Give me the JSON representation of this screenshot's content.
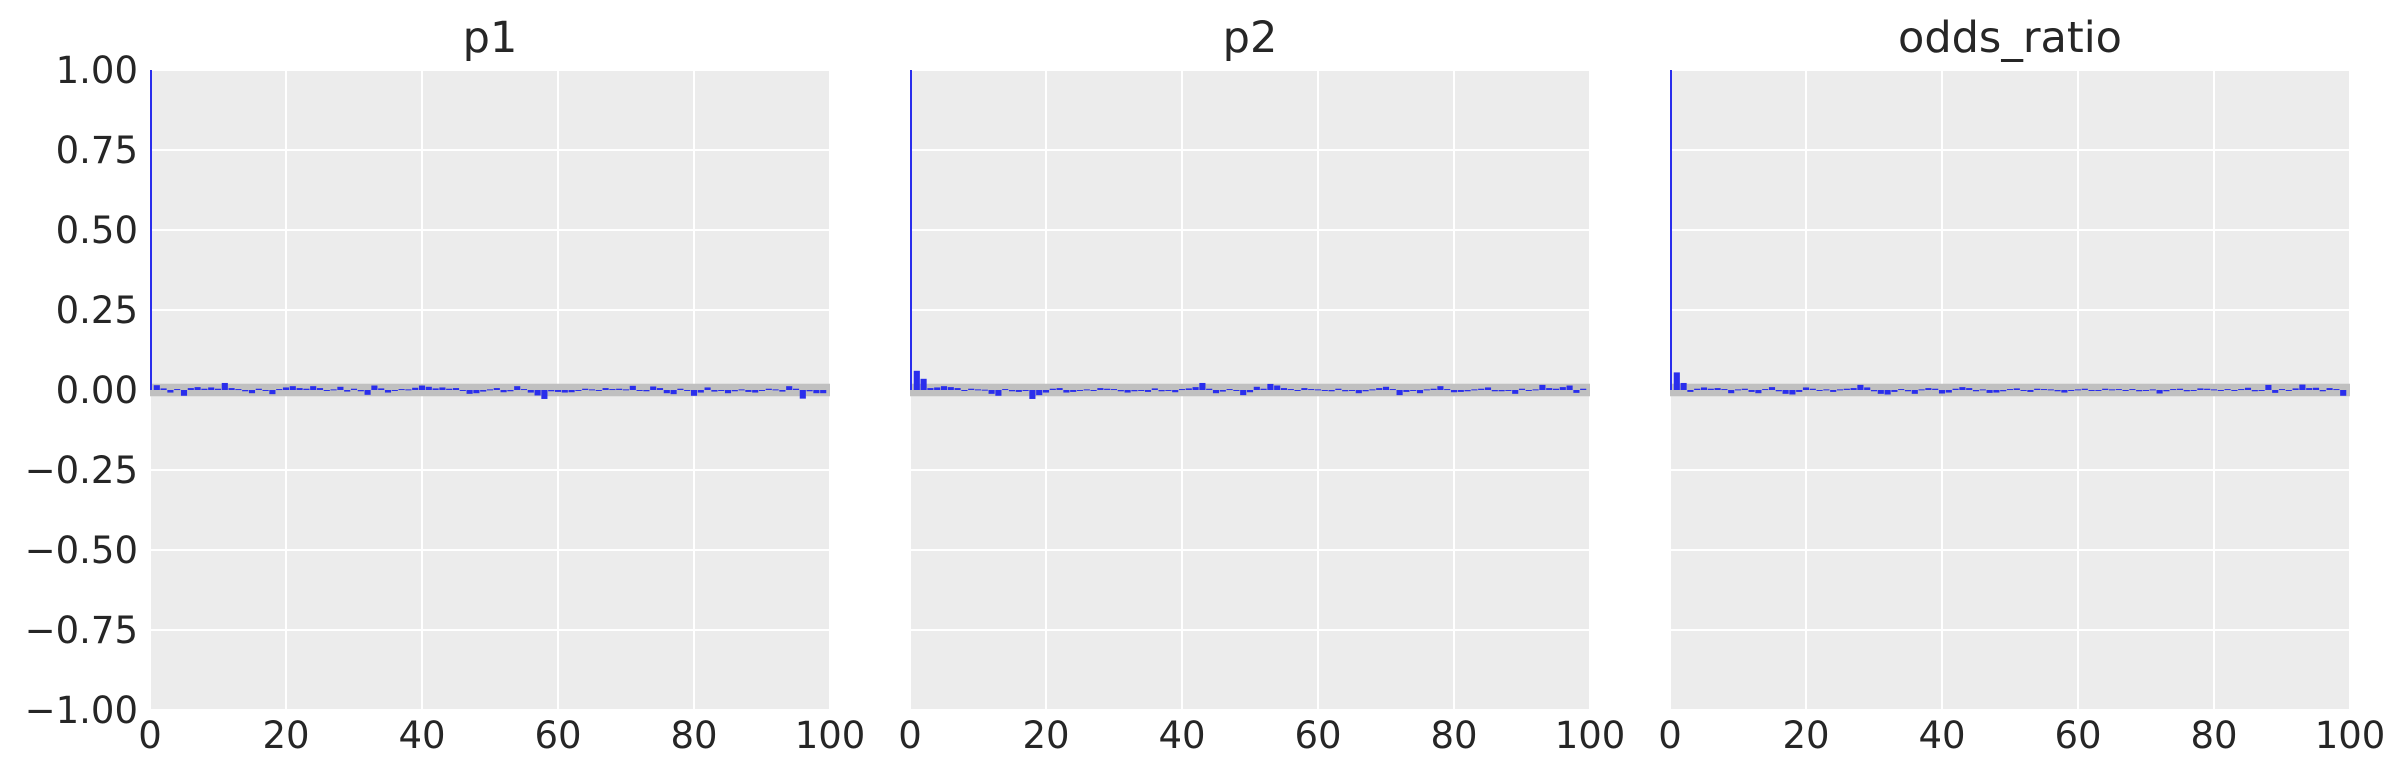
{
  "chart_data": [
    {
      "type": "bar",
      "title": "p1",
      "xlim": [
        0,
        100
      ],
      "ylim": [
        -1.0,
        1.0
      ],
      "xticks": [
        "0",
        "20",
        "40",
        "60",
        "80",
        "100"
      ],
      "yticks": [
        "1.00",
        "0.75",
        "0.50",
        "0.25",
        "0.00",
        "−0.25",
        "−0.50",
        "−0.75",
        "−1.00"
      ],
      "show_yticks": true,
      "grid": true,
      "confidence_band": [
        -0.0196,
        0.0196
      ],
      "bar_color": "#2a2eec",
      "band_color": "#c0c0c0",
      "facecolor": "#ececec",
      "lags": [
        0,
        1,
        2,
        3,
        4,
        5,
        6,
        7,
        8,
        9,
        10,
        11,
        12,
        13,
        14,
        15,
        16,
        17,
        18,
        19,
        20,
        21,
        22,
        23,
        24,
        25,
        26,
        27,
        28,
        29,
        30,
        31,
        32,
        33,
        34,
        35,
        36,
        37,
        38,
        39,
        40,
        41,
        42,
        43,
        44,
        45,
        46,
        47,
        48,
        49,
        50,
        51,
        52,
        53,
        54,
        55,
        56,
        57,
        58,
        59,
        60,
        61,
        62,
        63,
        64,
        65,
        66,
        67,
        68,
        69,
        70,
        71,
        72,
        73,
        74,
        75,
        76,
        77,
        78,
        79,
        80,
        81,
        82,
        83,
        84,
        85,
        86,
        87,
        88,
        89,
        90,
        91,
        92,
        93,
        94,
        95,
        96,
        97,
        98,
        99
      ],
      "values": [
        1.0,
        0.015,
        0.005,
        -0.008,
        0.003,
        -0.018,
        0.006,
        0.009,
        0.004,
        0.008,
        0.004,
        0.022,
        0.006,
        0.003,
        -0.004,
        -0.01,
        0.004,
        -0.003,
        -0.013,
        0.003,
        0.008,
        0.012,
        0.006,
        0.004,
        0.012,
        0.006,
        -0.003,
        0.002,
        0.01,
        -0.005,
        0.004,
        -0.004,
        -0.015,
        0.014,
        0.005,
        -0.008,
        -0.003,
        0.003,
        0.002,
        0.007,
        0.014,
        0.01,
        0.005,
        0.008,
        0.004,
        0.006,
        -0.002,
        -0.012,
        -0.01,
        -0.005,
        0.002,
        0.006,
        -0.007,
        -0.004,
        0.012,
        0.003,
        -0.008,
        -0.017,
        -0.028,
        -0.004,
        -0.006,
        -0.008,
        -0.007,
        -0.003,
        0.004,
        0.002,
        -0.003,
        0.006,
        0.003,
        0.004,
        0.002,
        0.013,
        -0.003,
        -0.004,
        0.011,
        0.006,
        -0.01,
        -0.013,
        0.004,
        -0.003,
        -0.018,
        -0.008,
        0.008,
        -0.005,
        -0.003,
        -0.01,
        -0.004,
        0.002,
        -0.006,
        -0.008,
        -0.003,
        0.004,
        0.002,
        -0.005,
        0.012,
        0.004,
        -0.027,
        -0.004,
        -0.01,
        -0.01
      ]
    },
    {
      "type": "bar",
      "title": "p2",
      "xlim": [
        0,
        100
      ],
      "ylim": [
        -1.0,
        1.0
      ],
      "xticks": [
        "0",
        "20",
        "40",
        "60",
        "80",
        "100"
      ],
      "show_yticks": false,
      "grid": true,
      "confidence_band": [
        -0.0196,
        0.0196
      ],
      "bar_color": "#2a2eec",
      "band_color": "#c0c0c0",
      "facecolor": "#ececec",
      "lags": [
        0,
        1,
        2,
        3,
        4,
        5,
        6,
        7,
        8,
        9,
        10,
        11,
        12,
        13,
        14,
        15,
        16,
        17,
        18,
        19,
        20,
        21,
        22,
        23,
        24,
        25,
        26,
        27,
        28,
        29,
        30,
        31,
        32,
        33,
        34,
        35,
        36,
        37,
        38,
        39,
        40,
        41,
        42,
        43,
        44,
        45,
        46,
        47,
        48,
        49,
        50,
        51,
        52,
        53,
        54,
        55,
        56,
        57,
        58,
        59,
        60,
        61,
        62,
        63,
        64,
        65,
        66,
        67,
        68,
        69,
        70,
        71,
        72,
        73,
        74,
        75,
        76,
        77,
        78,
        79,
        80,
        81,
        82,
        83,
        84,
        85,
        86,
        87,
        88,
        89,
        90,
        91,
        92,
        93,
        94,
        95,
        96,
        97,
        98,
        99
      ],
      "values": [
        1.0,
        0.06,
        0.035,
        0.006,
        0.008,
        0.012,
        0.009,
        0.006,
        -0.002,
        0.004,
        0.002,
        0.001,
        -0.012,
        -0.018,
        0.003,
        -0.004,
        -0.006,
        -0.003,
        -0.028,
        -0.016,
        -0.008,
        0.004,
        0.006,
        -0.008,
        -0.006,
        -0.003,
        0.002,
        -0.002,
        0.006,
        0.004,
        0.003,
        -0.004,
        -0.008,
        -0.004,
        -0.002,
        -0.006,
        0.005,
        -0.004,
        -0.003,
        -0.007,
        0.003,
        0.005,
        0.009,
        0.022,
        0.004,
        -0.01,
        -0.005,
        0.003,
        -0.003,
        -0.016,
        -0.007,
        0.01,
        0.004,
        0.019,
        0.014,
        0.006,
        0.003,
        -0.002,
        0.006,
        0.003,
        0.002,
        -0.003,
        -0.004,
        0.004,
        -0.004,
        -0.002,
        -0.01,
        -0.004,
        0.002,
        0.006,
        0.01,
        0.003,
        -0.016,
        -0.006,
        -0.002,
        -0.01,
        0.002,
        0.004,
        0.012,
        0.003,
        -0.007,
        -0.006,
        -0.004,
        0.002,
        0.004,
        0.008,
        -0.004,
        -0.004,
        -0.003,
        -0.012,
        0.004,
        -0.002,
        0.002,
        0.016,
        0.006,
        0.004,
        0.009,
        0.014,
        -0.009,
        0.004
      ]
    },
    {
      "type": "bar",
      "title": "odds_ratio",
      "xlim": [
        0,
        100
      ],
      "ylim": [
        -1.0,
        1.0
      ],
      "xticks": [
        "0",
        "20",
        "40",
        "60",
        "80",
        "100"
      ],
      "show_yticks": false,
      "grid": true,
      "confidence_band": [
        -0.0196,
        0.0196
      ],
      "bar_color": "#2a2eec",
      "band_color": "#c0c0c0",
      "facecolor": "#ececec",
      "lags": [
        0,
        1,
        2,
        3,
        4,
        5,
        6,
        7,
        8,
        9,
        10,
        11,
        12,
        13,
        14,
        15,
        16,
        17,
        18,
        19,
        20,
        21,
        22,
        23,
        24,
        25,
        26,
        27,
        28,
        29,
        30,
        31,
        32,
        33,
        34,
        35,
        36,
        37,
        38,
        39,
        40,
        41,
        42,
        43,
        44,
        45,
        46,
        47,
        48,
        49,
        50,
        51,
        52,
        53,
        54,
        55,
        56,
        57,
        58,
        59,
        60,
        61,
        62,
        63,
        64,
        65,
        66,
        67,
        68,
        69,
        70,
        71,
        72,
        73,
        74,
        75,
        76,
        77,
        78,
        79,
        80,
        81,
        82,
        83,
        84,
        85,
        86,
        87,
        88,
        89,
        90,
        91,
        92,
        93,
        94,
        95,
        96,
        97,
        98,
        99
      ],
      "values": [
        1.0,
        0.055,
        0.022,
        -0.006,
        0.004,
        0.008,
        0.004,
        0.006,
        0.003,
        -0.01,
        0.002,
        0.004,
        -0.006,
        -0.01,
        0.003,
        0.009,
        -0.004,
        -0.012,
        -0.014,
        -0.006,
        0.008,
        0.004,
        -0.003,
        0.002,
        -0.006,
        0.002,
        0.004,
        0.006,
        0.016,
        0.008,
        -0.004,
        -0.012,
        -0.014,
        -0.006,
        0.003,
        -0.004,
        -0.012,
        0.002,
        0.006,
        0.004,
        -0.011,
        -0.008,
        0.004,
        0.009,
        0.006,
        -0.004,
        0.002,
        -0.009,
        -0.008,
        -0.004,
        0.003,
        0.005,
        -0.003,
        -0.006,
        0.004,
        0.003,
        0.002,
        -0.004,
        -0.008,
        -0.003,
        0.002,
        0.004,
        -0.003,
        -0.002,
        0.004,
        0.002,
        0.003,
        -0.003,
        0.003,
        -0.004,
        -0.003,
        0.002,
        -0.011,
        -0.004,
        0.003,
        0.004,
        -0.004,
        -0.003,
        0.005,
        0.004,
        0.002,
        -0.003,
        0.003,
        -0.002,
        0.003,
        0.007,
        -0.004,
        -0.003,
        0.016,
        -0.009,
        0.003,
        -0.003,
        0.005,
        0.017,
        0.006,
        0.007,
        -0.004,
        0.006,
        0.003,
        -0.018
      ]
    }
  ]
}
